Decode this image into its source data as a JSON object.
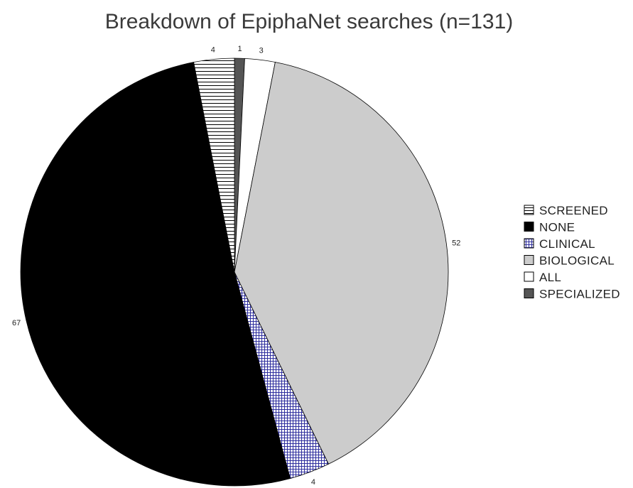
{
  "chart_data": {
    "type": "pie",
    "title": "Breakdown of EpiphaNet searches (n=131)",
    "slices": [
      {
        "label": "SPECIALIZED",
        "value": 1,
        "display": "1",
        "fill": "#555555",
        "pattern": "solid"
      },
      {
        "label": "ALL",
        "value": 3,
        "display": "3",
        "fill": "#ffffff",
        "pattern": "solid"
      },
      {
        "label": "BIOLOGICAL",
        "value": 52,
        "display": "52",
        "fill": "#cccccc",
        "pattern": "solid"
      },
      {
        "label": "CLINICAL",
        "value": 4,
        "display": "4",
        "fill": "#2e2e9e",
        "pattern": "crosshatch"
      },
      {
        "label": "NONE",
        "value": 67,
        "display": "67",
        "fill": "#000000",
        "pattern": "solid"
      },
      {
        "label": "SCREENED",
        "value": 4,
        "display": "4",
        "fill": "#000000",
        "pattern": "horizontal-lines"
      }
    ],
    "legend": {
      "placement": "right",
      "items": [
        {
          "label": "SCREENED",
          "pattern": "horizontal-lines"
        },
        {
          "label": "NONE",
          "pattern": "solid-black"
        },
        {
          "label": "CLINICAL",
          "pattern": "crosshatch-blue"
        },
        {
          "label": "BIOLOGICAL",
          "pattern": "solid-gray"
        },
        {
          "label": "ALL",
          "pattern": "solid-white"
        },
        {
          "label": "SPECIALIZED",
          "pattern": "solid-darkgray"
        }
      ]
    },
    "start_angle": "12 o'clock",
    "direction": "clockwise"
  }
}
